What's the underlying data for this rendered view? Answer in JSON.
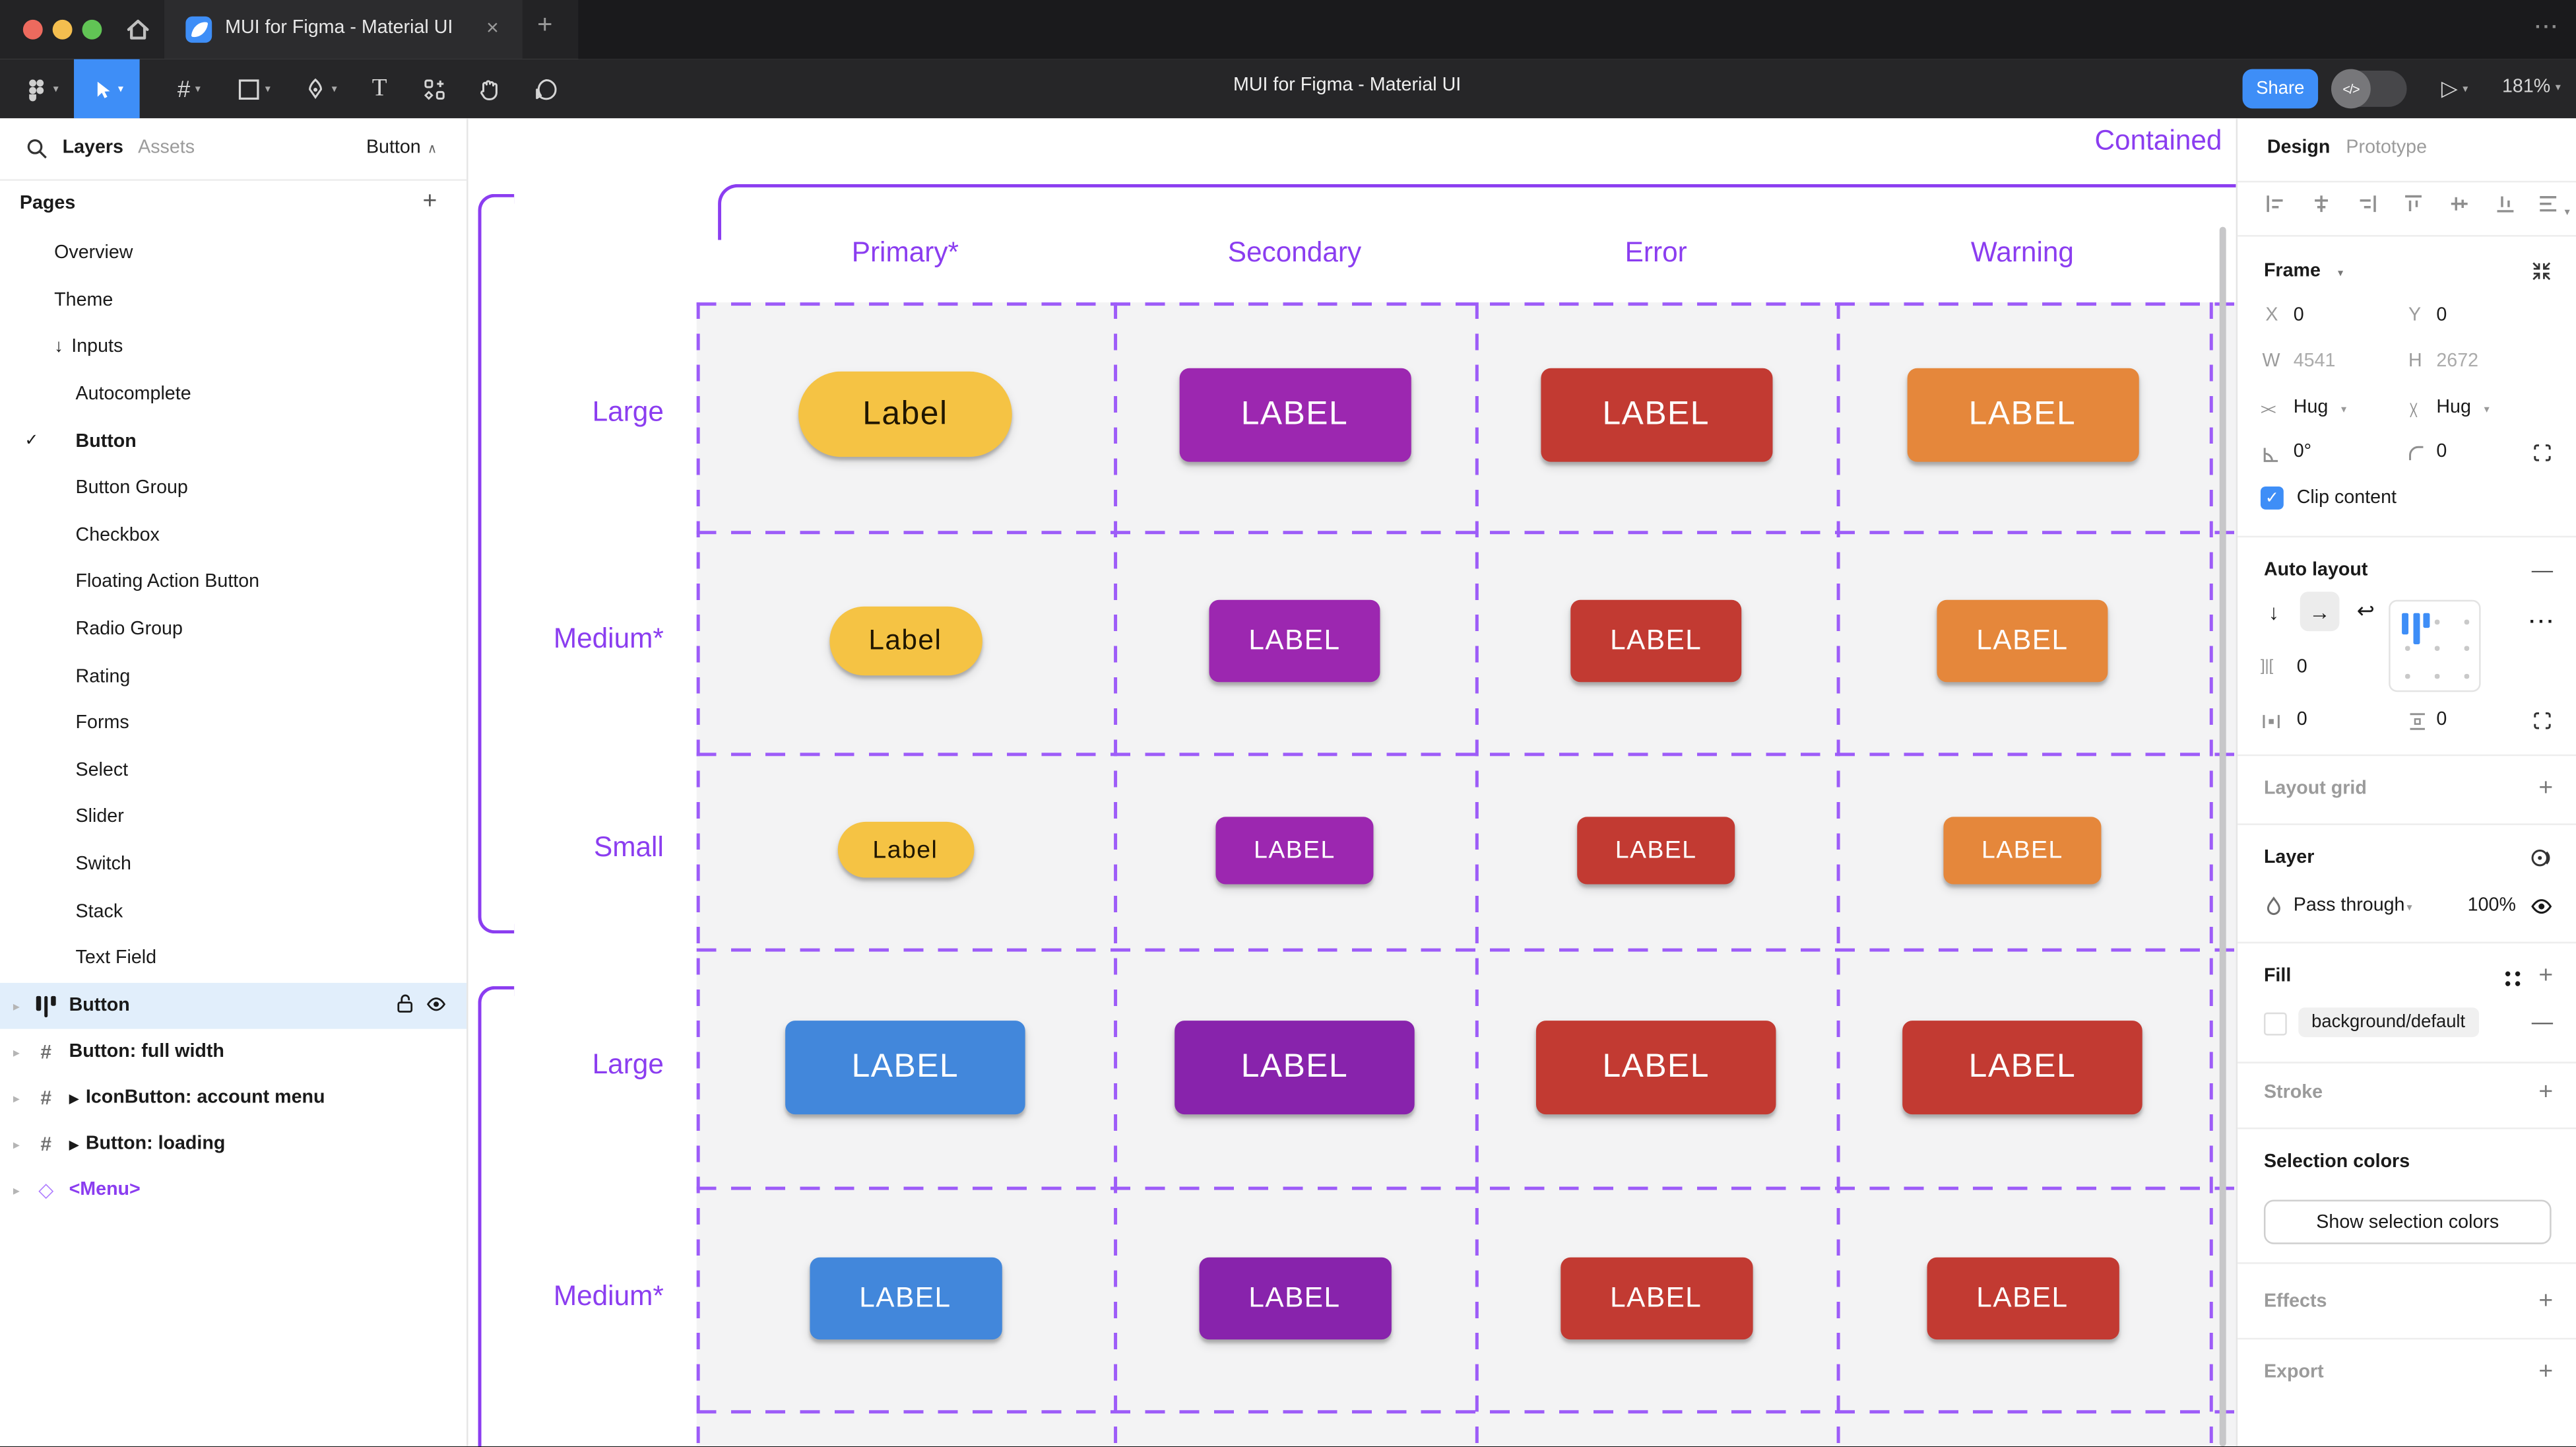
{
  "window": {
    "tab_title": "MUI for Figma - Material UI",
    "toolbar_title": "MUI for Figma - Material UI",
    "share_label": "Share",
    "zoom_level": "181%",
    "accent_color": "#3E8EF7"
  },
  "sidebar": {
    "tabs": {
      "layers": "Layers",
      "assets": "Assets"
    },
    "page_selector": "Button",
    "pages_header": "Pages",
    "pages": [
      {
        "label": "Overview",
        "indent": 1
      },
      {
        "label": "Theme",
        "indent": 1
      },
      {
        "label": "Inputs",
        "indent": 1,
        "prefix": "↓"
      },
      {
        "label": "Autocomplete",
        "indent": 2
      },
      {
        "label": "Button",
        "indent": 2,
        "checked": true,
        "bold": true
      },
      {
        "label": "Button Group",
        "indent": 2
      },
      {
        "label": "Checkbox",
        "indent": 2
      },
      {
        "label": "Floating Action Button",
        "indent": 2
      },
      {
        "label": "Radio Group",
        "indent": 2
      },
      {
        "label": "Rating",
        "indent": 2
      },
      {
        "label": "Forms",
        "indent": 2
      },
      {
        "label": "Select",
        "indent": 2
      },
      {
        "label": "Slider",
        "indent": 2
      },
      {
        "label": "Switch",
        "indent": 2
      },
      {
        "label": "Stack",
        "indent": 2
      },
      {
        "label": "Text Field",
        "indent": 2
      }
    ],
    "layers": [
      {
        "label": "Button",
        "icon": "auto-layout",
        "selected": true
      },
      {
        "label": "Button: full width",
        "icon": "frame"
      },
      {
        "label": "IconButton: account menu",
        "icon": "frame",
        "component": true
      },
      {
        "label": "Button: loading",
        "icon": "frame",
        "component": true
      },
      {
        "label": "<Menu>",
        "icon": "diamond",
        "purple": true
      }
    ]
  },
  "canvas": {
    "frame_title": "Contained",
    "column_headers": [
      "Primary*",
      "Secondary",
      "Error",
      "Warning"
    ],
    "purple": "#8B3DF0",
    "dash_color": "#9D5CF8",
    "rows": [
      {
        "label": "Large",
        "buttons": [
          {
            "text": "Label",
            "bg": "#F5C344",
            "fg": "#201600",
            "shape": "pill",
            "w": 130,
            "h": 52,
            "fs": 20
          },
          {
            "text": "LABEL",
            "bg": "#9C27B0",
            "fg": "#FFFFFF",
            "shape": "rect",
            "w": 141,
            "h": 57,
            "fs": 20
          },
          {
            "text": "LABEL",
            "bg": "#C23A32",
            "fg": "#FFFFFF",
            "shape": "rect",
            "w": 141,
            "h": 57,
            "fs": 20
          },
          {
            "text": "LABEL",
            "bg": "#E5873B",
            "fg": "#FFFFFF",
            "shape": "rect",
            "w": 141,
            "h": 57,
            "fs": 20
          }
        ]
      },
      {
        "label": "Medium*",
        "buttons": [
          {
            "text": "Label",
            "bg": "#F5C344",
            "fg": "#201600",
            "shape": "pill",
            "w": 93,
            "h": 42,
            "fs": 17
          },
          {
            "text": "LABEL",
            "bg": "#9C27B0",
            "fg": "#FFFFFF",
            "shape": "rect",
            "w": 104,
            "h": 50,
            "fs": 17
          },
          {
            "text": "LABEL",
            "bg": "#C23A32",
            "fg": "#FFFFFF",
            "shape": "rect",
            "w": 104,
            "h": 50,
            "fs": 17
          },
          {
            "text": "LABEL",
            "bg": "#E5873B",
            "fg": "#FFFFFF",
            "shape": "rect",
            "w": 104,
            "h": 50,
            "fs": 17
          }
        ]
      },
      {
        "label": "Small",
        "buttons": [
          {
            "text": "Label",
            "bg": "#F5C344",
            "fg": "#201600",
            "shape": "pill",
            "w": 83,
            "h": 34,
            "fs": 15
          },
          {
            "text": "LABEL",
            "bg": "#9C27B0",
            "fg": "#FFFFFF",
            "shape": "rect",
            "w": 96,
            "h": 41,
            "fs": 15
          },
          {
            "text": "LABEL",
            "bg": "#C23A32",
            "fg": "#FFFFFF",
            "shape": "rect",
            "w": 96,
            "h": 41,
            "fs": 15
          },
          {
            "text": "LABEL",
            "bg": "#E5873B",
            "fg": "#FFFFFF",
            "shape": "rect",
            "w": 96,
            "h": 41,
            "fs": 15
          }
        ]
      },
      {
        "label": "Large",
        "buttons": [
          {
            "text": "LABEL",
            "bg": "#4287DB",
            "fg": "#FFFFFF",
            "shape": "rect",
            "w": 146,
            "h": 57,
            "fs": 20
          },
          {
            "text": "LABEL",
            "bg": "#8823AC",
            "fg": "#FFFFFF",
            "shape": "rect",
            "w": 146,
            "h": 57,
            "fs": 20
          },
          {
            "text": "LABEL",
            "bg": "#C23A32",
            "fg": "#FFFFFF",
            "shape": "rect",
            "w": 146,
            "h": 57,
            "fs": 20
          },
          {
            "text": "LABEL",
            "bg": "#C23A32",
            "fg": "#FFFFFF",
            "shape": "rect",
            "w": 146,
            "h": 57,
            "fs": 20
          }
        ]
      },
      {
        "label": "Medium*",
        "buttons": [
          {
            "text": "LABEL",
            "bg": "#4287DB",
            "fg": "#FFFFFF",
            "shape": "rect",
            "w": 117,
            "h": 50,
            "fs": 17
          },
          {
            "text": "LABEL",
            "bg": "#8823AC",
            "fg": "#FFFFFF",
            "shape": "rect",
            "w": 117,
            "h": 50,
            "fs": 17
          },
          {
            "text": "LABEL",
            "bg": "#C23A32",
            "fg": "#FFFFFF",
            "shape": "rect",
            "w": 117,
            "h": 50,
            "fs": 17
          },
          {
            "text": "LABEL",
            "bg": "#C23A32",
            "fg": "#FFFFFF",
            "shape": "rect",
            "w": 117,
            "h": 50,
            "fs": 17
          }
        ]
      }
    ]
  },
  "inspector": {
    "tab_design": "Design",
    "tab_prototype": "Prototype",
    "frame": {
      "header": "Frame",
      "x_label": "X",
      "x_value": "0",
      "y_label": "Y",
      "y_value": "0",
      "w_label": "W",
      "w_value": "4541",
      "h_label": "H",
      "h_value": "2672",
      "hug_h": "Hug",
      "hug_v": "Hug",
      "rotation": "0°",
      "radius": "0",
      "clip_label": "Clip content"
    },
    "auto_layout": {
      "header": "Auto layout",
      "gap": "0",
      "pad_h": "0",
      "pad_v": "0"
    },
    "layout_grid_header": "Layout grid",
    "layer": {
      "header": "Layer",
      "blend_mode": "Pass through",
      "opacity": "100%"
    },
    "fill": {
      "header": "Fill",
      "style_name": "background/default"
    },
    "stroke_header": "Stroke",
    "selection_colors": {
      "header": "Selection colors",
      "button": "Show selection colors"
    },
    "effects_header": "Effects",
    "export_header": "Export"
  }
}
